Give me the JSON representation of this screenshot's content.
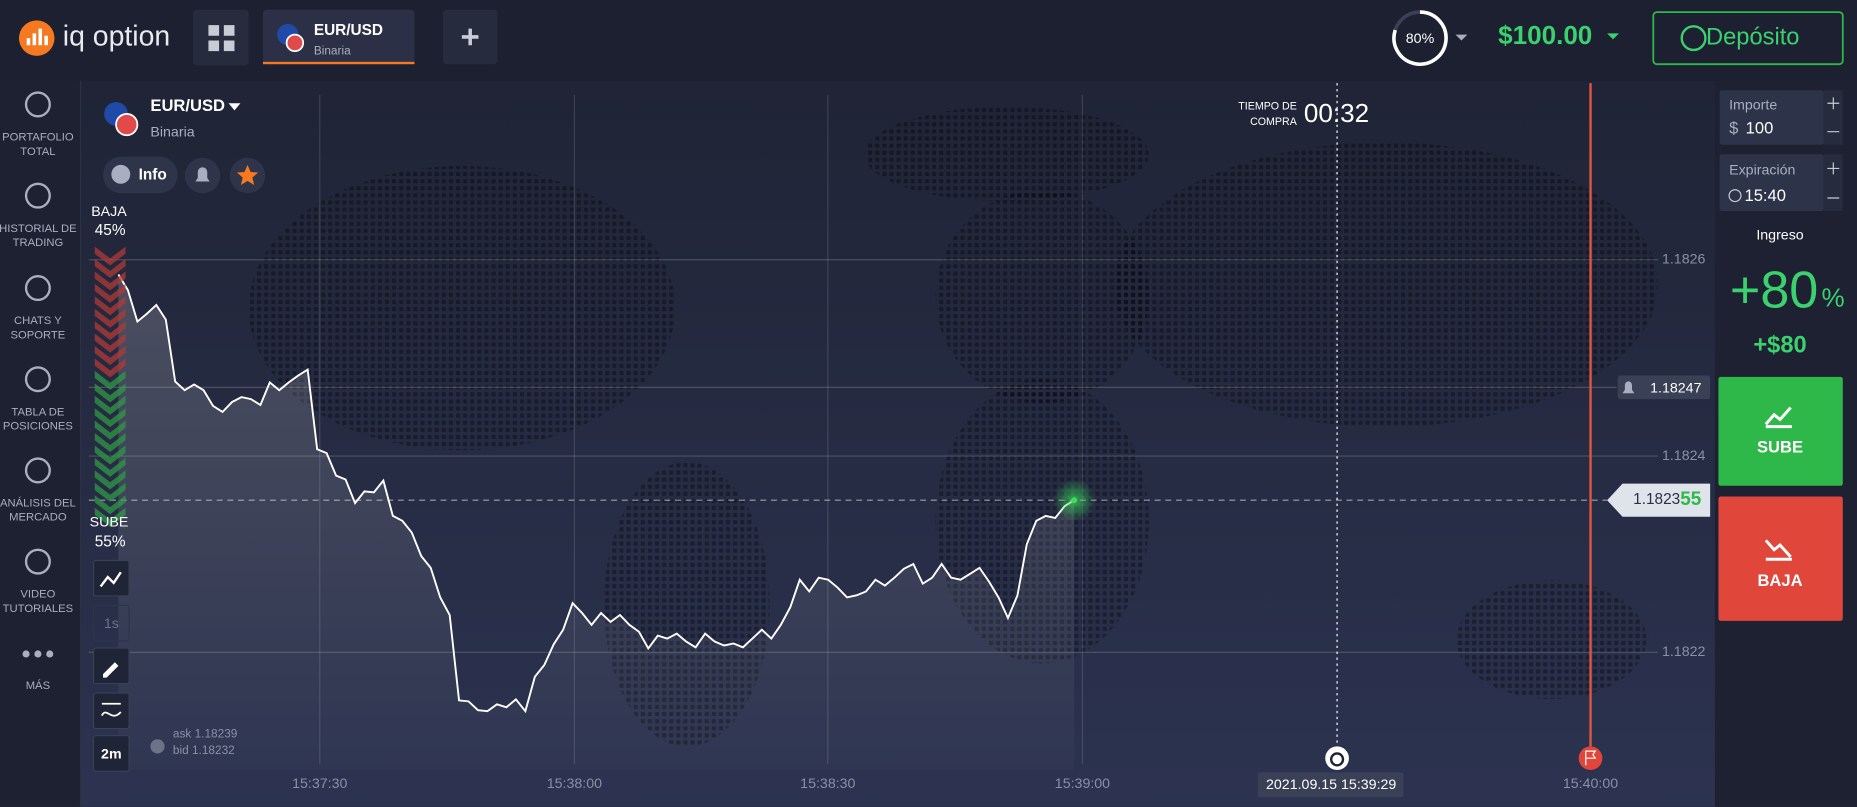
{
  "header": {
    "logo": "iq option",
    "tab": {
      "title": "EUR/USD",
      "subtitle": "Binaria"
    },
    "payout": "80%",
    "balance": "$100.00",
    "deposit": "Depósito"
  },
  "sidebar": [
    {
      "lines": [
        "PORTAFOLIO",
        "TOTAL"
      ]
    },
    {
      "lines": [
        "HISTORIAL DE",
        "TRADING"
      ]
    },
    {
      "lines": [
        "CHATS Y",
        "SOPORTE"
      ]
    },
    {
      "lines": [
        "TABLA DE",
        "POSICIONES"
      ]
    },
    {
      "lines": [
        "ANÁLISIS DEL",
        "MERCADO"
      ]
    },
    {
      "lines": [
        "VIDEO",
        "TUTORIALES"
      ]
    },
    {
      "lines": [
        "MÁS"
      ]
    }
  ],
  "asset": {
    "name": "EUR/USD",
    "kind": "Binaria",
    "info": "Info"
  },
  "sentiment": {
    "down_label": "BAJA",
    "down_pct": "45%",
    "up_label": "SUBE",
    "up_pct": "55%"
  },
  "tools": {
    "interval": "1s",
    "period": "2m"
  },
  "quotes": {
    "ask": "ask 1.18239",
    "bid": "bid 1.18232"
  },
  "timer": {
    "line1": "TIEMPO DE",
    "line2": "COMPRA",
    "time": "00:32"
  },
  "chart": {
    "type": "line",
    "color": "#ffffff",
    "ylim": [
      1.18208,
      1.18278
    ],
    "yticks": [
      1.1822,
      1.1824,
      1.1826
    ],
    "xticks": [
      "15:37:30",
      "15:38:00",
      "15:38:30",
      "15:39:00",
      "15:40:00"
    ],
    "values": [
      1.182585,
      1.182569,
      1.182537,
      1.182545,
      1.182554,
      1.182539,
      1.182476,
      1.182467,
      1.182473,
      1.182467,
      1.182451,
      1.182445,
      1.182455,
      1.18246,
      1.182458,
      1.182452,
      1.182475,
      1.182467,
      1.182475,
      1.182482,
      1.182488,
      1.182407,
      1.182403,
      1.18238,
      1.182376,
      1.182352,
      1.182364,
      1.182363,
      1.182375,
      1.182339,
      1.182334,
      1.182322,
      1.182298,
      1.182286,
      1.182256,
      1.182238,
      1.182151,
      1.18215,
      1.182141,
      1.18214,
      1.182147,
      1.182144,
      1.182152,
      1.18214,
      1.182175,
      1.182187,
      1.182208,
      1.182223,
      1.18225,
      1.18224,
      1.182228,
      1.18224,
      1.182231,
      1.182238,
      1.182228,
      1.182221,
      1.182204,
      1.182217,
      1.182214,
      1.182219,
      1.182211,
      1.182205,
      1.182219,
      1.182211,
      1.182207,
      1.182209,
      1.182205,
      1.182214,
      1.182223,
      1.182214,
      1.182228,
      1.182246,
      1.182274,
      1.182262,
      1.182276,
      1.182274,
      1.182266,
      1.182256,
      1.182258,
      1.182262,
      1.182274,
      1.182268,
      1.182276,
      1.182285,
      1.18229,
      1.18227,
      1.182276,
      1.18229,
      1.182276,
      1.182274,
      1.18228,
      1.182286,
      1.182272,
      1.182256,
      1.182235,
      1.182258,
      1.18231,
      1.182334,
      1.182339,
      1.182337,
      1.182349,
      1.182355
    ],
    "alert_price": 1.18247,
    "current_price": 1.182355,
    "current_label": [
      "1.1823",
      "55"
    ],
    "alert_label": "1.18247",
    "expiry_label": "2021.09.15 15:39:29"
  },
  "panel": {
    "amount_label": "Importe",
    "currency": "$",
    "amount": "100",
    "expiry_label": "Expiración",
    "expiry": "15:40",
    "income_label": "Ingreso",
    "income_pct": "+80",
    "pct_sign": "%",
    "income": "+$80",
    "up": "SUBE",
    "down": "BAJA"
  }
}
